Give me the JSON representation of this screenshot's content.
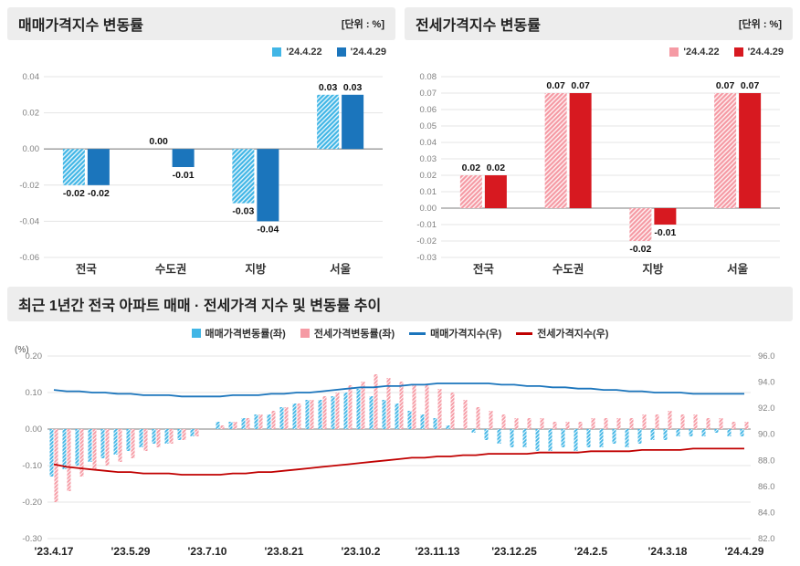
{
  "colors": {
    "bar_light_blue": "#41b6e6",
    "bar_dark_blue": "#1b75bc",
    "bar_pink": "#f59aa4",
    "bar_red": "#d71920",
    "line_blue": "#1b75bc",
    "line_red": "#c00000",
    "header_band": "#ededed"
  },
  "chart_data": [
    {
      "id": "sale-bar",
      "type": "bar",
      "title": "매매가격지수 변동률",
      "unit": "[단위 : %]",
      "categories": [
        "전국",
        "수도권",
        "지방",
        "서울"
      ],
      "series": [
        {
          "name": "'24.4.22",
          "values": [
            -0.02,
            0.0,
            -0.03,
            0.03
          ],
          "color": "#41b6e6",
          "hatch": true
        },
        {
          "name": "'24.4.29",
          "values": [
            -0.02,
            -0.01,
            -0.04,
            0.03
          ],
          "color": "#1b75bc",
          "hatch": false
        }
      ],
      "ylim": [
        -0.06,
        0.04
      ],
      "ytick": 0.02,
      "grid": true,
      "legend_position": "top-right"
    },
    {
      "id": "jeonse-bar",
      "type": "bar",
      "title": "전세가격지수 변동률",
      "unit": "[단위 : %]",
      "categories": [
        "전국",
        "수도권",
        "지방",
        "서울"
      ],
      "series": [
        {
          "name": "'24.4.22",
          "values": [
            0.02,
            0.07,
            -0.02,
            0.07
          ],
          "color": "#f59aa4",
          "hatch": true
        },
        {
          "name": "'24.4.29",
          "values": [
            0.02,
            0.07,
            -0.01,
            0.07
          ],
          "color": "#d71920",
          "hatch": false
        }
      ],
      "ylim": [
        -0.03,
        0.08
      ],
      "ytick": 0.01,
      "grid": true,
      "legend_position": "top-right"
    },
    {
      "id": "trend-combo",
      "type": "combo",
      "title": "최근 1년간 전국 아파트 매매 · 전세가격 지수 및 변동률 추이",
      "x_labels": [
        "'23.4.17",
        "'23.5.29",
        "'23.7.10",
        "'23.8.21",
        "'23.10.2",
        "'23.11.13",
        "'23.12.25",
        "'24.2.5",
        "'24.3.18",
        "'24.4.29"
      ],
      "x_label_step": 6,
      "left_axis": {
        "label": "(%)",
        "min": -0.3,
        "max": 0.2,
        "tick": 0.1
      },
      "right_axis": {
        "min": 82.0,
        "max": 96.0,
        "tick": 2.0
      },
      "bar_series": [
        {
          "name": "매매가격변동률(좌)",
          "color": "#41b6e6",
          "hatch": true,
          "values": [
            -0.13,
            -0.11,
            -0.1,
            -0.09,
            -0.08,
            -0.07,
            -0.06,
            -0.05,
            -0.04,
            -0.04,
            -0.03,
            -0.02,
            0.0,
            0.02,
            0.02,
            0.03,
            0.04,
            0.04,
            0.06,
            0.07,
            0.08,
            0.08,
            0.09,
            0.1,
            0.11,
            0.09,
            0.08,
            0.07,
            0.05,
            0.04,
            0.03,
            0.01,
            0.0,
            -0.01,
            -0.03,
            -0.04,
            -0.05,
            -0.05,
            -0.06,
            -0.06,
            -0.05,
            -0.06,
            -0.05,
            -0.05,
            -0.04,
            -0.05,
            -0.04,
            -0.03,
            -0.03,
            -0.02,
            -0.02,
            -0.02,
            -0.01,
            -0.02,
            -0.02
          ]
        },
        {
          "name": "전세가격변동률(좌)",
          "color": "#f59aa4",
          "hatch": true,
          "values": [
            -0.2,
            -0.17,
            -0.13,
            -0.11,
            -0.1,
            -0.09,
            -0.08,
            -0.06,
            -0.05,
            -0.04,
            -0.03,
            -0.02,
            0.0,
            0.01,
            0.02,
            0.03,
            0.04,
            0.05,
            0.06,
            0.07,
            0.08,
            0.09,
            0.1,
            0.12,
            0.13,
            0.15,
            0.14,
            0.13,
            0.12,
            0.12,
            0.11,
            0.1,
            0.08,
            0.06,
            0.05,
            0.04,
            0.03,
            0.03,
            0.03,
            0.02,
            0.02,
            0.02,
            0.03,
            0.03,
            0.03,
            0.03,
            0.04,
            0.04,
            0.05,
            0.04,
            0.04,
            0.03,
            0.03,
            0.02,
            0.02
          ]
        }
      ],
      "line_series": [
        {
          "name": "매매가격지수(우)",
          "color": "#1b75bc",
          "values": [
            93.4,
            93.3,
            93.3,
            93.2,
            93.2,
            93.1,
            93.1,
            93.0,
            93.0,
            93.0,
            92.9,
            92.9,
            92.9,
            92.9,
            93.0,
            93.0,
            93.0,
            93.1,
            93.1,
            93.2,
            93.2,
            93.3,
            93.4,
            93.5,
            93.6,
            93.6,
            93.7,
            93.7,
            93.8,
            93.8,
            93.9,
            93.9,
            93.9,
            93.9,
            93.9,
            93.8,
            93.8,
            93.7,
            93.7,
            93.6,
            93.6,
            93.5,
            93.5,
            93.4,
            93.4,
            93.3,
            93.3,
            93.2,
            93.2,
            93.2,
            93.1,
            93.1,
            93.1,
            93.1,
            93.1
          ]
        },
        {
          "name": "전세가격지수(우)",
          "color": "#c00000",
          "values": [
            87.7,
            87.5,
            87.4,
            87.3,
            87.2,
            87.1,
            87.1,
            87.0,
            87.0,
            87.0,
            86.9,
            86.9,
            86.9,
            86.9,
            87.0,
            87.0,
            87.1,
            87.1,
            87.2,
            87.3,
            87.4,
            87.5,
            87.6,
            87.7,
            87.8,
            87.9,
            88.0,
            88.1,
            88.2,
            88.2,
            88.3,
            88.3,
            88.4,
            88.4,
            88.5,
            88.5,
            88.5,
            88.5,
            88.6,
            88.6,
            88.6,
            88.6,
            88.7,
            88.7,
            88.7,
            88.7,
            88.8,
            88.8,
            88.8,
            88.8,
            88.9,
            88.9,
            88.9,
            88.9,
            88.9
          ]
        }
      ],
      "grid": true,
      "legend_position": "top-center"
    }
  ]
}
